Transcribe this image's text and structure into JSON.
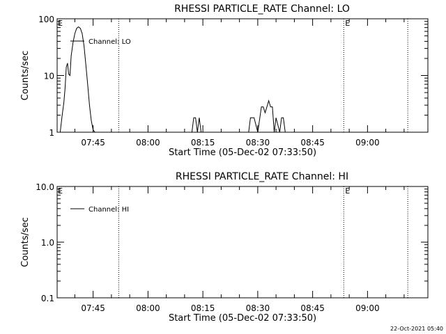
{
  "chart_data": [
    {
      "type": "line",
      "title": "RHESSI PARTICLE_RATE Channel: LO",
      "xlabel": "Start Time (05-Dec-02 07:33:50)",
      "ylabel": "Counts/sec",
      "yscale": "log",
      "ylim": [
        1,
        100
      ],
      "yticks": [
        "1",
        "10",
        "100"
      ],
      "xlim": [
        "07:35:10",
        "09:16:30"
      ],
      "xticks": [
        "07:45",
        "08:00",
        "08:15",
        "08:30",
        "08:45",
        "09:00"
      ],
      "legend": "top-left",
      "grid": false,
      "event_markers": [
        {
          "time": "07:52:00",
          "label": ""
        },
        {
          "time": "08:53:30",
          "label": "E"
        },
        {
          "time": "09:11:00",
          "label": ""
        }
      ],
      "left_marker_label": "E",
      "series": [
        {
          "name": "Channel: LO",
          "x": [
            "07:36:00",
            "07:36:30",
            "07:37:00",
            "07:37:20",
            "07:37:40",
            "07:38:00",
            "07:38:20",
            "07:38:40",
            "07:39:00",
            "07:39:30",
            "07:40:00",
            "07:40:30",
            "07:41:00",
            "07:41:30",
            "07:42:00",
            "07:42:30",
            "07:43:00",
            "07:43:30",
            "07:44:00",
            "07:44:30",
            "07:45:00",
            "07:45:30",
            "07:46:00",
            "08:12:00",
            "08:12:30",
            "08:13:00",
            "08:13:30",
            "08:14:00",
            "08:14:30",
            "08:15:00",
            "08:27:30",
            "08:28:00",
            "08:29:00",
            "08:30:00",
            "08:31:00",
            "08:31:30",
            "08:32:00",
            "08:32:30",
            "08:33:00",
            "08:33:30",
            "08:34:00",
            "08:34:30",
            "08:35:00",
            "08:36:00",
            "08:36:30",
            "08:37:00",
            "08:37:30",
            "08:38:00"
          ],
          "y": [
            1,
            1.9,
            3.3,
            6.0,
            14.0,
            16.5,
            10.5,
            10.0,
            22.0,
            38.0,
            55.0,
            68.0,
            72.0,
            68.0,
            55.0,
            34.0,
            16.0,
            7.0,
            3.0,
            1.6,
            1.1,
            1.0,
            1.0,
            1.0,
            1.8,
            1.8,
            1.0,
            1.8,
            1.0,
            1.0,
            1.0,
            1.8,
            1.8,
            1.0,
            2.8,
            2.8,
            2.2,
            2.8,
            3.6,
            2.8,
            2.8,
            1.0,
            1.8,
            1.0,
            1.8,
            1.8,
            1.0,
            1.0
          ]
        }
      ]
    },
    {
      "type": "line",
      "title": "RHESSI PARTICLE_RATE Channel: HI",
      "xlabel": "Start Time (05-Dec-02 07:33:50)",
      "ylabel": "Counts/sec",
      "yscale": "log",
      "ylim": [
        0.1,
        10
      ],
      "yticks": [
        "0.1",
        "1.0",
        "10.0"
      ],
      "xlim": [
        "07:35:10",
        "09:16:30"
      ],
      "xticks": [
        "07:45",
        "08:00",
        "08:15",
        "08:30",
        "08:45",
        "09:00"
      ],
      "legend": "top-left",
      "grid": false,
      "event_markers": [
        {
          "time": "07:52:00",
          "label": ""
        },
        {
          "time": "08:53:30",
          "label": "E"
        },
        {
          "time": "09:11:00",
          "label": ""
        }
      ],
      "left_marker_label": "E",
      "series": [
        {
          "name": "Channel: HI",
          "x": [],
          "y": []
        }
      ]
    }
  ],
  "footer": {
    "timestamp": "22-Oct-2021 05:40"
  }
}
